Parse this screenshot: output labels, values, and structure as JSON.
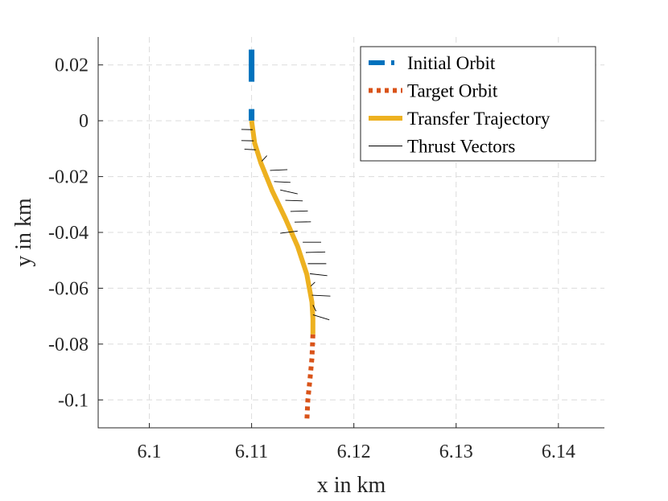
{
  "chart_data": {
    "type": "line",
    "title": "",
    "xlabel": "x in km",
    "ylabel": "y in km",
    "xlim": [
      6.095,
      6.1445
    ],
    "ylim": [
      -0.11,
      0.03
    ],
    "grid": true,
    "x_ticks": [
      6.1,
      6.11,
      6.12,
      6.13,
      6.14
    ],
    "x_tick_labels": [
      "6.1",
      "6.11",
      "6.12",
      "6.13",
      "6.14"
    ],
    "y_ticks": [
      0.02,
      0,
      -0.02,
      -0.04,
      -0.06,
      -0.08,
      -0.1
    ],
    "y_tick_labels": [
      "0.02",
      "0",
      "-0.02",
      "-0.04",
      "-0.06",
      "-0.08",
      "-0.1"
    ],
    "legend_position": "top-right",
    "series": [
      {
        "name": "Initial Orbit",
        "style": "dashed",
        "color": "#0072BD",
        "x": [
          6.11,
          6.11
        ],
        "y": [
          0.0255,
          0.0
        ],
        "dash_pattern": [
          40,
          34
        ]
      },
      {
        "name": "Target Orbit",
        "style": "dotted",
        "color": "#D95319",
        "x": [
          6.116,
          6.1159,
          6.1157,
          6.1155,
          6.1154
        ],
        "y": [
          -0.0765,
          -0.085,
          -0.093,
          -0.1,
          -0.108
        ],
        "dash_pattern": [
          5,
          5
        ]
      },
      {
        "name": "Transfer Trajectory",
        "style": "solid",
        "color": "#EDB120",
        "x": [
          6.11,
          6.1103,
          6.1109,
          6.112,
          6.1133,
          6.1145,
          6.1154,
          6.1159,
          6.116,
          6.116
        ],
        "y": [
          0.0,
          -0.008,
          -0.015,
          -0.025,
          -0.035,
          -0.045,
          -0.055,
          -0.065,
          -0.071,
          -0.0765
        ]
      },
      {
        "name": "Thrust Vectors",
        "style": "solid",
        "color": "#000000",
        "segments": [
          [
            [
              6.1101,
              -0.0032
            ],
            [
              6.109,
              -0.0031
            ]
          ],
          [
            [
              6.1102,
              -0.0072
            ],
            [
              6.109,
              -0.0071
            ]
          ],
          [
            [
              6.1104,
              -0.0104
            ],
            [
              6.1093,
              -0.0102
            ]
          ],
          [
            [
              6.111,
              -0.0145
            ],
            [
              6.1115,
              -0.0125
            ]
          ],
          [
            [
              6.1118,
              -0.0178
            ],
            [
              6.1135,
              -0.0175
            ]
          ],
          [
            [
              6.1122,
              -0.0218
            ],
            [
              6.1138,
              -0.0221
            ]
          ],
          [
            [
              6.1128,
              -0.0248
            ],
            [
              6.1145,
              -0.0262
            ]
          ],
          [
            [
              6.1133,
              -0.0285
            ],
            [
              6.115,
              -0.0287
            ]
          ],
          [
            [
              6.1138,
              -0.0325
            ],
            [
              6.1155,
              -0.0323
            ]
          ],
          [
            [
              6.1142,
              -0.0363
            ],
            [
              6.1158,
              -0.0362
            ]
          ],
          [
            [
              6.1145,
              -0.0395
            ],
            [
              6.1128,
              -0.0403
            ]
          ],
          [
            [
              6.115,
              -0.0435
            ],
            [
              6.1168,
              -0.0435
            ]
          ],
          [
            [
              6.1153,
              -0.0472
            ],
            [
              6.1172,
              -0.047
            ]
          ],
          [
            [
              6.1155,
              -0.0512
            ],
            [
              6.1173,
              -0.0512
            ]
          ],
          [
            [
              6.1157,
              -0.0548
            ],
            [
              6.1174,
              -0.0555
            ]
          ],
          [
            [
              6.1158,
              -0.0592
            ],
            [
              6.1162,
              -0.0578
            ]
          ],
          [
            [
              6.1159,
              -0.0625
            ],
            [
              6.1177,
              -0.0628
            ]
          ],
          [
            [
              6.116,
              -0.066
            ],
            [
              6.1163,
              -0.0682
            ]
          ],
          [
            [
              6.116,
              -0.0695
            ],
            [
              6.1176,
              -0.0713
            ]
          ]
        ]
      }
    ]
  }
}
